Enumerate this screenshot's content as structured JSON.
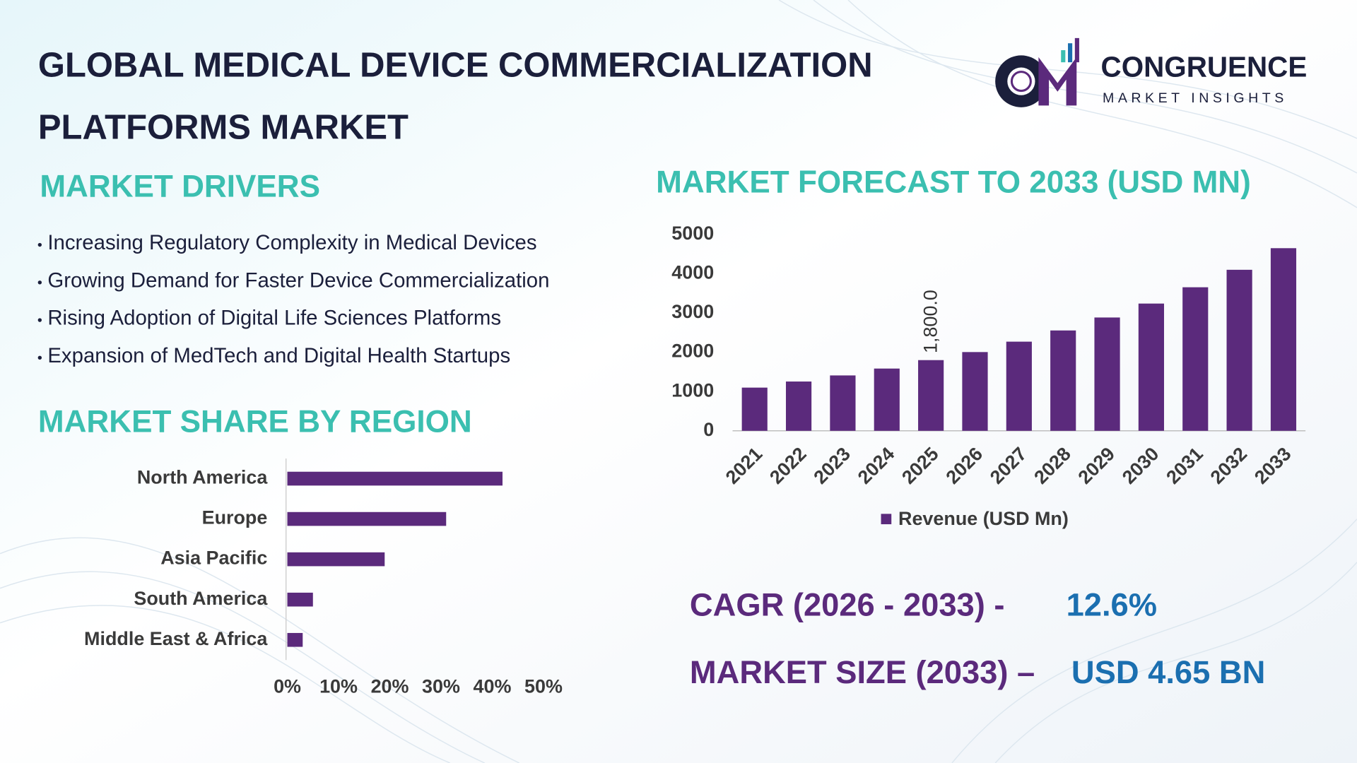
{
  "title": [
    "GLOBAL MEDICAL DEVICE COMMERCIALIZATION",
    "PLATFORMS MARKET"
  ],
  "logo": {
    "name": "CONGRUENCE",
    "tagline": "MARKET INSIGHTS"
  },
  "drivers": {
    "heading": "MARKET DRIVERS",
    "items": [
      "Increasing Regulatory Complexity in Medical Devices",
      "Growing Demand for Faster Device Commercialization",
      "Rising Adoption of Digital Life Sciences Platforms",
      "Expansion of MedTech and Digital Health Startups"
    ]
  },
  "cagr": {
    "label": "CAGR (2026 - 2033) -",
    "value": "12.6%"
  },
  "market_size": {
    "label": "MARKET SIZE (2033) –",
    "value": "USD 4.65 BN"
  },
  "chart_data": [
    {
      "type": "bar",
      "title": "MARKET FORECAST TO 2033 (USD MN)",
      "categories": [
        "2021",
        "2022",
        "2023",
        "2024",
        "2025",
        "2026",
        "2027",
        "2028",
        "2029",
        "2030",
        "2031",
        "2032",
        "2033"
      ],
      "series": [
        {
          "name": "Revenue (USD Mn)",
          "color": "#5b2a7c",
          "values": [
            1100,
            1255,
            1410,
            1585,
            1800,
            2005,
            2270,
            2555,
            2885,
            3240,
            3655,
            4100,
            4650
          ],
          "value_labels": [
            null,
            null,
            null,
            null,
            "1,800.0",
            null,
            null,
            null,
            null,
            null,
            null,
            null,
            null
          ]
        }
      ],
      "ylim": [
        0,
        5000
      ],
      "yticks": [
        0,
        1000,
        2000,
        3000,
        4000,
        5000
      ],
      "grid": false,
      "legend": "bottom"
    },
    {
      "type": "barh",
      "title": "MARKET SHARE BY REGION",
      "categories": [
        "North America",
        "Europe",
        "Asia Pacific",
        "South America",
        "Middle East & Africa"
      ],
      "values": [
        42,
        31,
        19,
        5,
        3
      ],
      "color": "#5b2a7c",
      "xlim": [
        0,
        50
      ],
      "xticks": [
        {
          "value": 0,
          "label": "0%"
        },
        {
          "value": 10,
          "label": "10%"
        },
        {
          "value": 20,
          "label": "20%"
        },
        {
          "value": 30,
          "label": "30%"
        },
        {
          "value": 40,
          "label": "40%"
        },
        {
          "value": 50,
          "label": "50%"
        }
      ],
      "grid": false
    }
  ]
}
